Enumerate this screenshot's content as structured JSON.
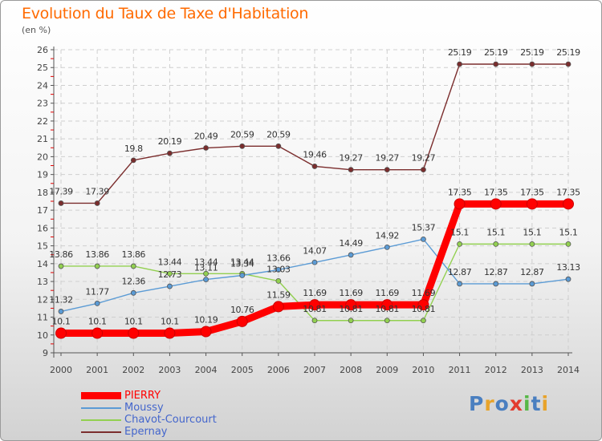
{
  "header": {
    "title": "Evolution du Taux de Taxe d'Habitation",
    "unit": "(en %)"
  },
  "logo": {
    "text": "Proxiti",
    "letters": [
      "P",
      "r",
      "o",
      "x",
      "i",
      "t",
      "i"
    ],
    "colors": [
      "#4a7fc0",
      "#e8a32a",
      "#4a7fc0",
      "#e33c2f",
      "#57b847",
      "#4a7fc0",
      "#e8a32a"
    ]
  },
  "chart_data": {
    "type": "line",
    "title": "Evolution du Taux de Taxe d'Habitation",
    "ylabel": "(en %)",
    "xlabel": "",
    "x": [
      "2000",
      "2001",
      "2002",
      "2003",
      "2004",
      "2005",
      "2006",
      "2007",
      "2008",
      "2009",
      "2010",
      "2011",
      "2012",
      "2013",
      "2014"
    ],
    "ylim": [
      9,
      26
    ],
    "yticks": [
      "9",
      "10",
      "11",
      "12",
      "13",
      "14",
      "15",
      "16",
      "17",
      "18",
      "19",
      "20",
      "21",
      "22",
      "23",
      "24",
      "25",
      "26"
    ],
    "grid": true,
    "legend_position": "bottom-left",
    "series": [
      {
        "name": "PIERRY",
        "color": "#ff0000",
        "values": [
          10.1,
          10.1,
          10.1,
          10.1,
          10.19,
          10.76,
          11.59,
          11.69,
          11.69,
          11.69,
          11.69,
          17.35,
          17.35,
          17.35,
          17.35
        ],
        "labels": [
          "10.1",
          "10.1",
          "10.1",
          "10.1",
          "10.19",
          "10.76",
          "11.59",
          "11.69",
          "11.69",
          "11.69",
          "11.69",
          "17.35",
          "17.35",
          "17.35",
          "17.35"
        ]
      },
      {
        "name": "Moussy",
        "color": "#5b9bd5",
        "values": [
          11.32,
          11.77,
          12.36,
          12.73,
          13.11,
          13.34,
          13.66,
          14.07,
          14.49,
          14.92,
          15.37,
          12.87,
          12.87,
          12.87,
          13.13
        ],
        "labels": [
          "11.32",
          "11.77",
          "12.36",
          "12.73",
          "13.11",
          "13.34",
          "13.66",
          "14.07",
          "14.49",
          "14.92",
          "15.37",
          "12.87",
          "12.87",
          "12.87",
          "13.13"
        ]
      },
      {
        "name": "Chavot-Courcourt",
        "color": "#92d050",
        "values": [
          13.86,
          13.86,
          13.86,
          13.44,
          13.44,
          13.44,
          13.03,
          10.81,
          10.81,
          10.81,
          10.81,
          15.1,
          15.1,
          15.1,
          15.1
        ],
        "labels": [
          "13.86",
          "13.86",
          "13.86",
          "13.44",
          "13.44",
          "13.44",
          "13.03",
          "10.81",
          "10.81",
          "10.81",
          "10.81",
          "15.1",
          "15.1",
          "15.1",
          "15.1"
        ]
      },
      {
        "name": "Epernay",
        "color": "#7b2d2d",
        "values": [
          17.39,
          17.39,
          19.8,
          20.19,
          20.49,
          20.59,
          20.59,
          19.46,
          19.27,
          19.27,
          19.27,
          25.19,
          25.19,
          25.19,
          25.19
        ],
        "labels": [
          "17.39",
          "17.39",
          "19.8",
          "20.19",
          "20.49",
          "20.59",
          "20.59",
          "19.46",
          "19.27",
          "19.27",
          "19.27",
          "25.19",
          "25.19",
          "25.19",
          "25.19"
        ]
      }
    ]
  }
}
